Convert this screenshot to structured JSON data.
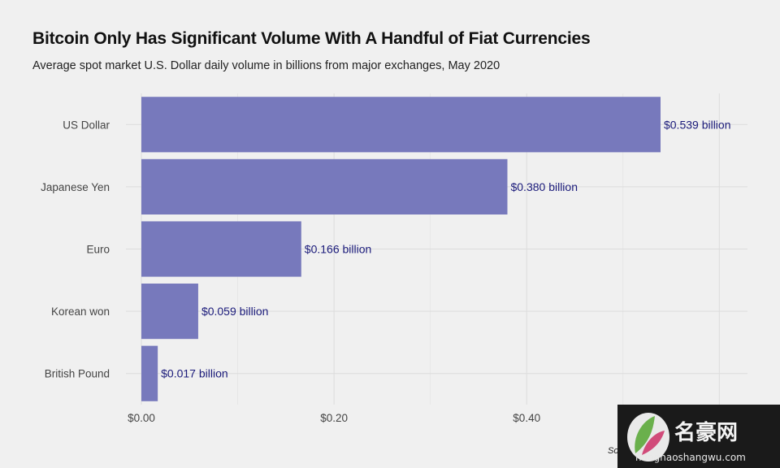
{
  "chart_data": {
    "type": "bar",
    "orientation": "horizontal",
    "title": "Bitcoin Only Has Significant Volume With A Handful of Fiat Currencies",
    "subtitle": "Average spot market U.S. Dollar daily volume in billions from major exchanges, May 2020",
    "categories": [
      "US Dollar",
      "Japanese Yen",
      "Euro",
      "Korean won",
      "British Pound"
    ],
    "values": [
      0.539,
      0.38,
      0.166,
      0.059,
      0.017
    ],
    "data_labels": [
      "$0.539 billion",
      "$0.380 billion",
      "$0.166 billion",
      "$0.059 billion",
      "$0.017 billion"
    ],
    "x_ticks": [
      0.0,
      0.2,
      0.4
    ],
    "x_tick_labels": [
      "$0.00",
      "$0.20",
      "$0.40"
    ],
    "xlim": [
      0,
      0.62
    ],
    "grid": true,
    "bar_color": "#7779bc"
  },
  "source_text": "So",
  "watermark": {
    "text": "名豪网",
    "url": "minghaoshangwu.com"
  }
}
